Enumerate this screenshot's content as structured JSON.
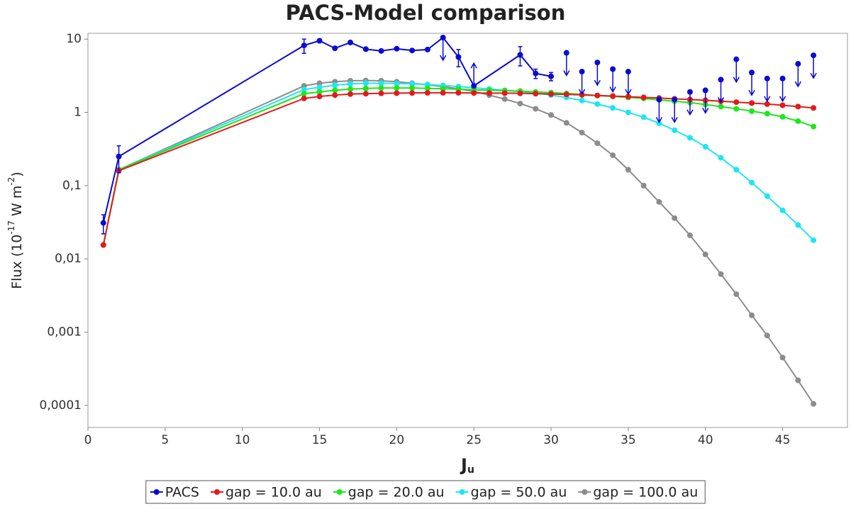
{
  "chart_data": {
    "type": "line",
    "title": "PACS-Model comparison",
    "xlabel": [
      "J",
      "u"
    ],
    "ylabel": [
      "Flux (10",
      "-17",
      " W m",
      "-2",
      ")"
    ],
    "xlim": [
      0,
      49.2
    ],
    "xticks": [
      0,
      5,
      10,
      15,
      20,
      25,
      30,
      35,
      40,
      45
    ],
    "ylim": [
      5e-05,
      12
    ],
    "log_y": true,
    "yticks": [
      10,
      1,
      {
        "value": 0.1,
        "label": "0,1"
      },
      {
        "value": 0.01,
        "label": "0,01"
      },
      {
        "value": 0.001,
        "label": "0,001"
      },
      {
        "value": 0.0001,
        "label": "0,0001"
      }
    ],
    "legend": "bottom",
    "series": [
      {
        "name": "PACS",
        "color": "#0a0ad2",
        "x": [
          1,
          2,
          14,
          15,
          16,
          17,
          18,
          19,
          20,
          21,
          22,
          23,
          24,
          25,
          28,
          29,
          30
        ],
        "values": [
          0.031,
          0.25,
          8.2,
          9.5,
          7.5,
          9.0,
          7.3,
          6.9,
          7.4,
          7.0,
          7.2,
          10.5,
          5.7,
          2.3,
          6.1,
          3.4,
          3.1
        ],
        "errors": [
          0.009,
          0.1,
          1.8,
          null,
          null,
          null,
          null,
          null,
          null,
          null,
          null,
          null,
          1.5,
          null,
          1.8,
          0.5,
          0.4
        ],
        "limits": [
          null,
          null,
          null,
          null,
          null,
          null,
          null,
          null,
          null,
          null,
          null,
          "upper",
          null,
          "lower",
          null,
          null,
          null
        ],
        "upper_limits": {
          "x": [
            31,
            32,
            33,
            34,
            35,
            37,
            38,
            39,
            40,
            41,
            42,
            43,
            44,
            45,
            46,
            47
          ],
          "values": [
            6.5,
            3.6,
            4.8,
            3.9,
            3.6,
            1.5,
            1.5,
            1.9,
            2.0,
            2.8,
            5.3,
            3.5,
            2.9,
            2.9,
            4.6,
            6.0
          ]
        }
      },
      {
        "name": "gap = 10.0 au",
        "color": "#e31a1a",
        "x": [
          1,
          2,
          14,
          15,
          16,
          17,
          18,
          19,
          20,
          21,
          22,
          23,
          24,
          25,
          26,
          27,
          28,
          29,
          30,
          31,
          32,
          33,
          34,
          35,
          36,
          37,
          38,
          39,
          40,
          41,
          42,
          43,
          44,
          45,
          46,
          47
        ],
        "values": [
          0.0155,
          0.16,
          1.55,
          1.65,
          1.72,
          1.78,
          1.8,
          1.82,
          1.83,
          1.84,
          1.85,
          1.85,
          1.85,
          1.84,
          1.83,
          1.83,
          1.82,
          1.8,
          1.78,
          1.76,
          1.73,
          1.7,
          1.67,
          1.64,
          1.6,
          1.57,
          1.53,
          1.5,
          1.46,
          1.42,
          1.38,
          1.34,
          1.3,
          1.25,
          1.2,
          1.15
        ]
      },
      {
        "name": "gap = 20.0 au",
        "color": "#1ee61e",
        "x": [
          1,
          2,
          14,
          15,
          16,
          17,
          18,
          19,
          20,
          21,
          22,
          23,
          24,
          25,
          26,
          27,
          28,
          29,
          30,
          31,
          32,
          33,
          34,
          35,
          36,
          37,
          38,
          39,
          40,
          41,
          42,
          43,
          44,
          45,
          46,
          47
        ],
        "values": [
          0.0155,
          0.165,
          1.8,
          1.9,
          2.0,
          2.08,
          2.12,
          2.15,
          2.15,
          2.15,
          2.13,
          2.1,
          2.07,
          2.03,
          2.0,
          1.98,
          1.95,
          1.9,
          1.86,
          1.81,
          1.76,
          1.7,
          1.65,
          1.6,
          1.55,
          1.48,
          1.42,
          1.36,
          1.28,
          1.2,
          1.12,
          1.04,
          0.96,
          0.87,
          0.76,
          0.64
        ]
      },
      {
        "name": "gap = 50.0 au",
        "color": "#1ee6f0",
        "x": [
          1,
          2,
          14,
          15,
          16,
          17,
          18,
          19,
          20,
          21,
          22,
          23,
          24,
          25,
          26,
          27,
          28,
          29,
          30,
          31,
          32,
          33,
          34,
          35,
          36,
          37,
          38,
          39,
          40,
          41,
          42,
          43,
          44,
          45,
          46,
          47
        ],
        "values": [
          0.0155,
          0.165,
          2.05,
          2.2,
          2.35,
          2.45,
          2.5,
          2.5,
          2.48,
          2.45,
          2.4,
          2.33,
          2.25,
          2.17,
          2.08,
          2.0,
          1.92,
          1.83,
          1.72,
          1.6,
          1.45,
          1.3,
          1.15,
          1.0,
          0.86,
          0.71,
          0.57,
          0.45,
          0.34,
          0.24,
          0.165,
          0.11,
          0.072,
          0.046,
          0.029,
          0.018
        ]
      },
      {
        "name": "gap = 100.0 au",
        "color": "#8c8c8c",
        "x": [
          1,
          2,
          14,
          15,
          16,
          17,
          18,
          19,
          20,
          21,
          22,
          23,
          24,
          25,
          26,
          27,
          28,
          29,
          30,
          31,
          32,
          33,
          34,
          35,
          36,
          37,
          38,
          39,
          40,
          41,
          42,
          43,
          44,
          45,
          46,
          47
        ],
        "values": [
          0.0155,
          0.165,
          2.3,
          2.5,
          2.62,
          2.7,
          2.72,
          2.7,
          2.62,
          2.5,
          2.38,
          2.25,
          2.1,
          1.93,
          1.72,
          1.52,
          1.32,
          1.12,
          0.92,
          0.72,
          0.53,
          0.38,
          0.26,
          0.165,
          0.1,
          0.06,
          0.036,
          0.021,
          0.0115,
          0.0062,
          0.0033,
          0.0017,
          0.0009,
          0.00045,
          0.00022,
          0.000105
        ]
      }
    ]
  }
}
